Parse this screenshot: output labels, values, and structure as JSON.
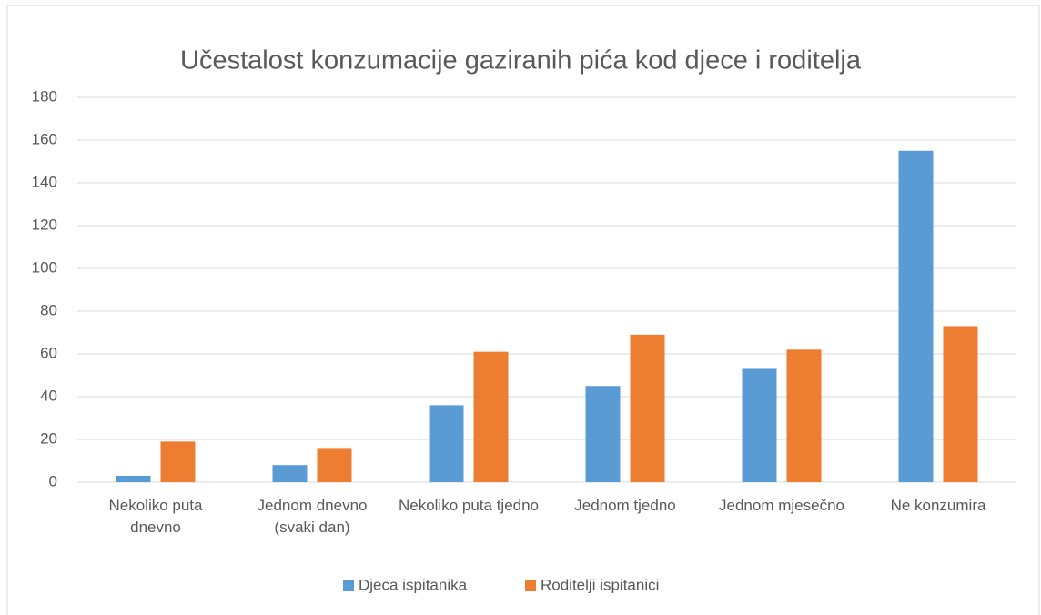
{
  "chart_data": {
    "type": "bar",
    "title": "Učestalost konzumacije gaziranih pića kod djece i roditelja",
    "categories": [
      "Nekoliko puta dnevno",
      "Jednom dnevno (svaki dan)",
      "Nekoliko puta tjedno",
      "Jednom tjedno",
      "Jednom mjesečno",
      "Ne konzumira"
    ],
    "series": [
      {
        "name": "Djeca ispitanika",
        "color": "#5b9bd5",
        "values": [
          3,
          8,
          36,
          45,
          53,
          155
        ]
      },
      {
        "name": "Roditelji ispitanici",
        "color": "#ed7d31",
        "values": [
          19,
          16,
          61,
          69,
          62,
          73
        ]
      }
    ],
    "ylim": [
      0,
      180
    ],
    "yticks": [
      0,
      20,
      40,
      60,
      80,
      100,
      120,
      140,
      160,
      180
    ],
    "grid": true,
    "legend": "bottom"
  }
}
